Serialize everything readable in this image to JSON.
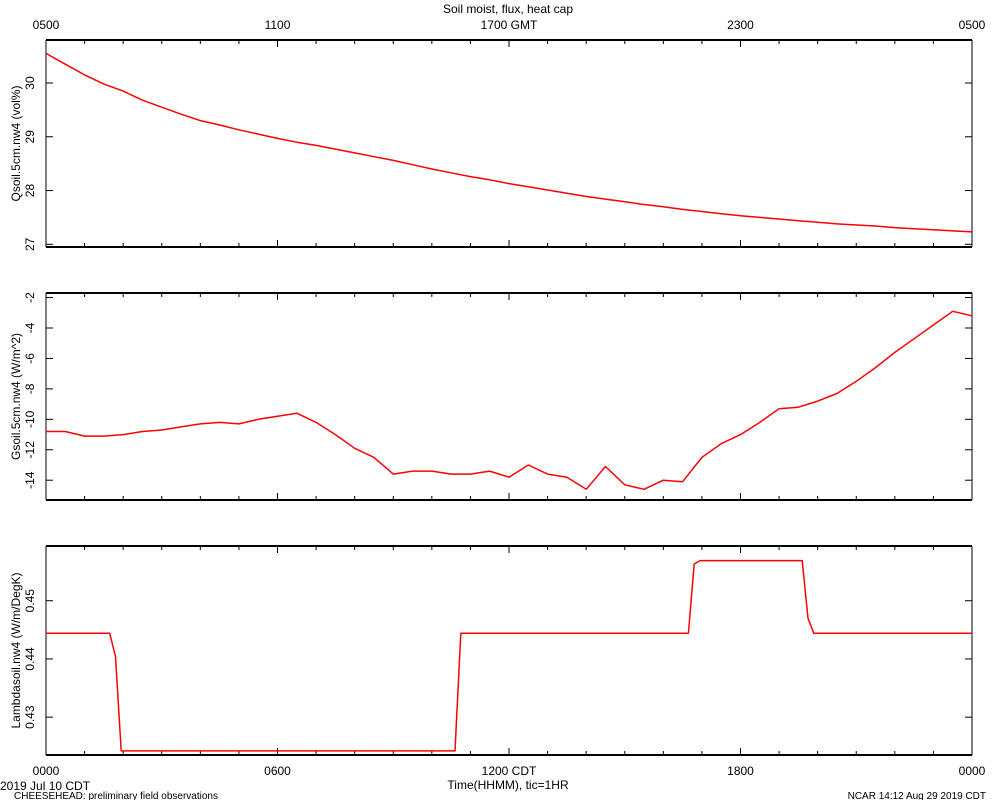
{
  "header": {
    "title": "Soil moist, flux, heat cap",
    "gmt_ticks": [
      "0500",
      "1100",
      "1700 GMT",
      "2300",
      "0500"
    ]
  },
  "footer": {
    "date_label": "2019 Jul 10 CDT",
    "project_label": "CHEESEHEAD: preliminary field observations",
    "stamp_label": "NCAR 14:12 Aug 29 2019 CDT",
    "xlabel": "Time(HHMM), tic=1HR",
    "cdt_ticks": [
      "0000",
      "0600",
      "1200 CDT",
      "1800",
      "0000"
    ]
  },
  "colors": {
    "series": "#ff0000",
    "axis": "#000000",
    "background": "#ffffff"
  },
  "chart_data": [
    {
      "type": "line",
      "ylabel": "Qsoil.5cm.nw4 (vol%)",
      "ylim": [
        26.95,
        30.8
      ],
      "yticks": [
        27,
        28,
        29,
        30
      ],
      "ytick_labels": [
        "27",
        "28",
        "29",
        "30"
      ],
      "xlim": [
        0,
        24
      ],
      "series": [
        {
          "x": [
            0,
            0.5,
            1,
            1.5,
            2,
            2.5,
            3,
            3.5,
            4,
            4.5,
            5,
            5.5,
            6,
            6.5,
            7,
            7.5,
            8,
            8.5,
            9,
            9.5,
            10,
            10.5,
            11,
            11.5,
            12,
            12.5,
            13,
            13.5,
            14,
            14.5,
            15,
            15.5,
            16,
            16.5,
            17,
            17.5,
            18,
            18.5,
            19,
            19.5,
            20,
            20.5,
            21,
            21.5,
            22,
            22.5,
            23,
            23.5,
            24
          ],
          "y": [
            30.55,
            30.35,
            30.15,
            29.98,
            29.85,
            29.68,
            29.55,
            29.42,
            29.3,
            29.22,
            29.13,
            29.05,
            28.97,
            28.9,
            28.84,
            28.77,
            28.7,
            28.63,
            28.56,
            28.48,
            28.4,
            28.33,
            28.26,
            28.2,
            28.13,
            28.07,
            28.01,
            27.95,
            27.89,
            27.84,
            27.79,
            27.74,
            27.7,
            27.65,
            27.61,
            27.57,
            27.53,
            27.5,
            27.47,
            27.44,
            27.41,
            27.38,
            27.36,
            27.34,
            27.31,
            27.29,
            27.27,
            27.25,
            27.23
          ]
        }
      ]
    },
    {
      "type": "line",
      "ylabel": "Gsoil.5cm.nw4 (W/m^2)",
      "ylim": [
        -15.3,
        -1.7
      ],
      "yticks": [
        -14,
        -12,
        -10,
        -8,
        -6,
        -4,
        -2
      ],
      "ytick_labels": [
        "-14",
        "-12",
        "-10",
        "-8",
        "-6",
        "-4",
        "-2"
      ],
      "xlim": [
        0,
        24
      ],
      "series": [
        {
          "x": [
            0,
            0.5,
            1,
            1.5,
            2,
            2.5,
            3,
            3.5,
            4,
            4.5,
            5,
            5.5,
            6,
            6.5,
            7,
            7.5,
            8,
            8.5,
            9,
            9.5,
            10,
            10.5,
            11,
            11.5,
            12,
            12.5,
            13,
            13.5,
            14,
            14.5,
            15,
            15.5,
            16,
            16.5,
            17,
            17.5,
            18,
            18.5,
            19,
            19.5,
            20,
            20.5,
            21,
            21.5,
            22,
            22.5,
            23,
            23.5,
            24
          ],
          "y": [
            -10.8,
            -10.8,
            -11.1,
            -11.1,
            -11.0,
            -10.8,
            -10.7,
            -10.5,
            -10.3,
            -10.2,
            -10.3,
            -10.0,
            -9.8,
            -9.6,
            -10.2,
            -11.0,
            -11.9,
            -12.5,
            -13.6,
            -13.4,
            -13.4,
            -13.6,
            -13.6,
            -13.4,
            -13.8,
            -13.0,
            -13.6,
            -13.8,
            -14.6,
            -13.1,
            -14.3,
            -14.6,
            -14.0,
            -14.1,
            -12.5,
            -11.6,
            -11.0,
            -10.2,
            -9.3,
            -9.2,
            -8.8,
            -8.3,
            -7.5,
            -6.6,
            -5.6,
            -4.7,
            -3.8,
            -2.9,
            -3.2
          ]
        }
      ]
    },
    {
      "type": "line",
      "ylabel": "Lambdasoil.nw4 (W/m/DegK)",
      "ylim": [
        0.4235,
        0.4594
      ],
      "yticks": [
        0.43,
        0.44,
        0.45
      ],
      "ytick_labels": [
        "0.43",
        "0.44",
        "0.45"
      ],
      "xlim": [
        0,
        24
      ],
      "series": [
        {
          "x": [
            0,
            1.65,
            1.8,
            1.95,
            10.6,
            10.75,
            16.65,
            16.8,
            16.95,
            19.6,
            19.75,
            19.9,
            24
          ],
          "y": [
            0.4444,
            0.4444,
            0.4404,
            0.4242,
            0.4242,
            0.4444,
            0.4444,
            0.4563,
            0.4569,
            0.4569,
            0.447,
            0.4444,
            0.4444
          ]
        }
      ]
    }
  ]
}
